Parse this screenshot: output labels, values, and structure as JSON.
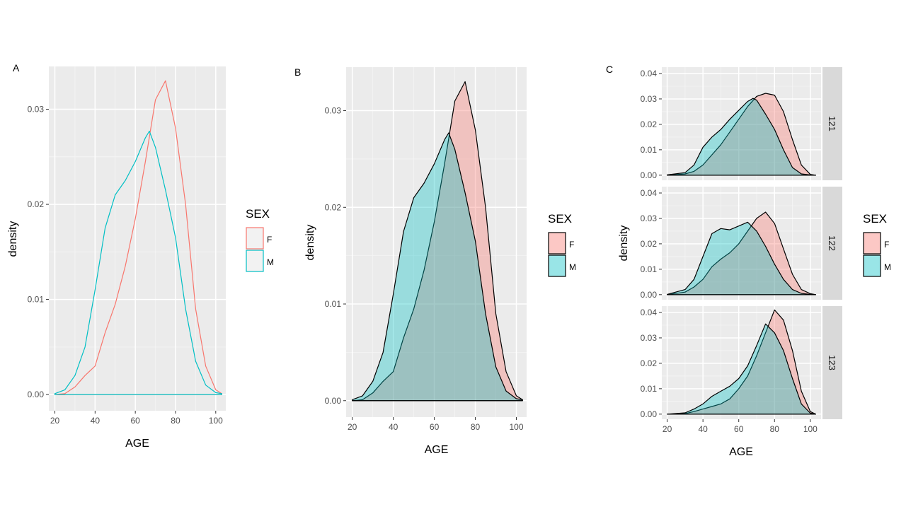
{
  "chart_data": [
    {
      "panel_label": "A",
      "type": "line",
      "xlabel": "AGE",
      "ylabel": "density",
      "xticks": [
        20,
        40,
        60,
        80,
        100
      ],
      "yticks": [
        0.0,
        0.01,
        0.02,
        0.03
      ],
      "ytick_labels": [
        "0.00",
        "0.01",
        "0.02",
        "0.03"
      ],
      "xlim": [
        17,
        105
      ],
      "ylim": [
        -0.0017,
        0.0345
      ],
      "legend": {
        "title": "SEX",
        "entries": [
          "F",
          "M"
        ],
        "style": "outline",
        "position": "right"
      },
      "series": [
        {
          "name": "F",
          "color": "#F8766D",
          "x": [
            20,
            25,
            30,
            35,
            40,
            45,
            50,
            55,
            60,
            65,
            70,
            75,
            80,
            85,
            90,
            95,
            100,
            103
          ],
          "y": [
            0.0,
            0.0001,
            0.0008,
            0.002,
            0.003,
            0.0065,
            0.0095,
            0.0135,
            0.0185,
            0.0245,
            0.031,
            0.033,
            0.028,
            0.02,
            0.009,
            0.003,
            0.0005,
            0.0001
          ]
        },
        {
          "name": "M",
          "color": "#00BFC4",
          "x": [
            20,
            25,
            30,
            35,
            40,
            45,
            50,
            55,
            60,
            65,
            67,
            70,
            75,
            80,
            85,
            90,
            95,
            100,
            103
          ],
          "y": [
            0.0001,
            0.0005,
            0.002,
            0.005,
            0.011,
            0.0175,
            0.021,
            0.0225,
            0.0245,
            0.027,
            0.0277,
            0.026,
            0.0215,
            0.0165,
            0.009,
            0.0035,
            0.001,
            0.0002,
            0.0001
          ]
        }
      ]
    },
    {
      "panel_label": "B",
      "type": "area",
      "xlabel": "AGE",
      "ylabel": "density",
      "xticks": [
        20,
        40,
        60,
        80,
        100
      ],
      "yticks": [
        0.0,
        0.01,
        0.02,
        0.03
      ],
      "ytick_labels": [
        "0.00",
        "0.01",
        "0.02",
        "0.03"
      ],
      "xlim": [
        17,
        105
      ],
      "ylim": [
        -0.0017,
        0.0345
      ],
      "legend": {
        "title": "SEX",
        "entries": [
          "F",
          "M"
        ],
        "style": "filled",
        "position": "right"
      },
      "series": [
        {
          "name": "F",
          "color": "#F8766D",
          "x": [
            20,
            25,
            30,
            35,
            40,
            45,
            50,
            55,
            60,
            65,
            70,
            75,
            80,
            85,
            90,
            95,
            100,
            103
          ],
          "y": [
            0.0,
            0.0001,
            0.0008,
            0.002,
            0.003,
            0.0065,
            0.0095,
            0.0135,
            0.0185,
            0.0245,
            0.031,
            0.033,
            0.028,
            0.02,
            0.009,
            0.003,
            0.0005,
            0.0001
          ]
        },
        {
          "name": "M",
          "color": "#00BFC4",
          "x": [
            20,
            25,
            30,
            35,
            40,
            45,
            50,
            55,
            60,
            65,
            67,
            70,
            75,
            80,
            85,
            90,
            95,
            100,
            103
          ],
          "y": [
            0.0001,
            0.0005,
            0.002,
            0.005,
            0.011,
            0.0175,
            0.021,
            0.0225,
            0.0245,
            0.027,
            0.0277,
            0.026,
            0.0215,
            0.0165,
            0.009,
            0.0035,
            0.001,
            0.0002,
            0.0001
          ]
        }
      ]
    },
    {
      "panel_label": "C",
      "type": "area",
      "xlabel": "AGE",
      "ylabel": "density",
      "xticks": [
        20,
        40,
        60,
        80,
        100
      ],
      "yticks": [
        0.0,
        0.01,
        0.02,
        0.03,
        0.04
      ],
      "ytick_labels": [
        "0.00",
        "0.01",
        "0.02",
        "0.03",
        "0.04"
      ],
      "xlim": [
        17,
        106
      ],
      "ylim": [
        -0.002,
        0.0425
      ],
      "legend": {
        "title": "SEX",
        "entries": [
          "F",
          "M"
        ],
        "style": "filled",
        "position": "right"
      },
      "facets": [
        {
          "strip": "121",
          "series": [
            {
              "name": "F",
              "color": "#F8766D",
              "x": [
                20,
                30,
                35,
                40,
                45,
                50,
                55,
                60,
                65,
                70,
                75,
                80,
                85,
                90,
                95,
                100,
                103
              ],
              "y": [
                0.0,
                0.0005,
                0.0015,
                0.004,
                0.008,
                0.012,
                0.017,
                0.022,
                0.027,
                0.031,
                0.0322,
                0.0315,
                0.025,
                0.014,
                0.004,
                0.0003,
                0.0
              ]
            },
            {
              "name": "M",
              "color": "#00BFC4",
              "x": [
                20,
                30,
                35,
                40,
                45,
                50,
                55,
                60,
                65,
                68,
                70,
                75,
                80,
                85,
                90,
                95,
                100,
                103
              ],
              "y": [
                0.0001,
                0.001,
                0.004,
                0.011,
                0.015,
                0.018,
                0.022,
                0.0255,
                0.029,
                0.0302,
                0.0295,
                0.024,
                0.018,
                0.01,
                0.003,
                0.0005,
                0.0001,
                0.0
              ]
            }
          ]
        },
        {
          "strip": "122",
          "series": [
            {
              "name": "F",
              "color": "#F8766D",
              "x": [
                20,
                30,
                35,
                40,
                45,
                50,
                55,
                60,
                65,
                70,
                75,
                80,
                85,
                90,
                95,
                100,
                103
              ],
              "y": [
                0.0,
                0.001,
                0.003,
                0.006,
                0.011,
                0.014,
                0.0165,
                0.02,
                0.025,
                0.03,
                0.0325,
                0.028,
                0.018,
                0.008,
                0.002,
                0.0004,
                0.0
              ]
            },
            {
              "name": "M",
              "color": "#00BFC4",
              "x": [
                20,
                30,
                35,
                40,
                45,
                50,
                55,
                60,
                65,
                70,
                75,
                80,
                85,
                90,
                95,
                100,
                103
              ],
              "y": [
                0.0001,
                0.002,
                0.006,
                0.015,
                0.024,
                0.026,
                0.0255,
                0.027,
                0.0285,
                0.025,
                0.019,
                0.012,
                0.006,
                0.002,
                0.0005,
                0.0001,
                0.0
              ]
            }
          ]
        },
        {
          "strip": "123",
          "series": [
            {
              "name": "F",
              "color": "#F8766D",
              "x": [
                20,
                30,
                35,
                40,
                45,
                50,
                55,
                60,
                65,
                70,
                75,
                80,
                85,
                90,
                95,
                100,
                103
              ],
              "y": [
                0.0,
                0.0002,
                0.001,
                0.002,
                0.003,
                0.004,
                0.006,
                0.01,
                0.015,
                0.023,
                0.032,
                0.041,
                0.037,
                0.025,
                0.009,
                0.001,
                0.0
              ]
            },
            {
              "name": "M",
              "color": "#00BFC4",
              "x": [
                20,
                30,
                35,
                40,
                45,
                50,
                55,
                60,
                65,
                70,
                75,
                80,
                85,
                90,
                95,
                100,
                103
              ],
              "y": [
                0.0,
                0.0005,
                0.002,
                0.004,
                0.007,
                0.009,
                0.011,
                0.014,
                0.019,
                0.027,
                0.0355,
                0.032,
                0.025,
                0.014,
                0.004,
                0.0004,
                0.0
              ]
            }
          ]
        }
      ]
    }
  ]
}
